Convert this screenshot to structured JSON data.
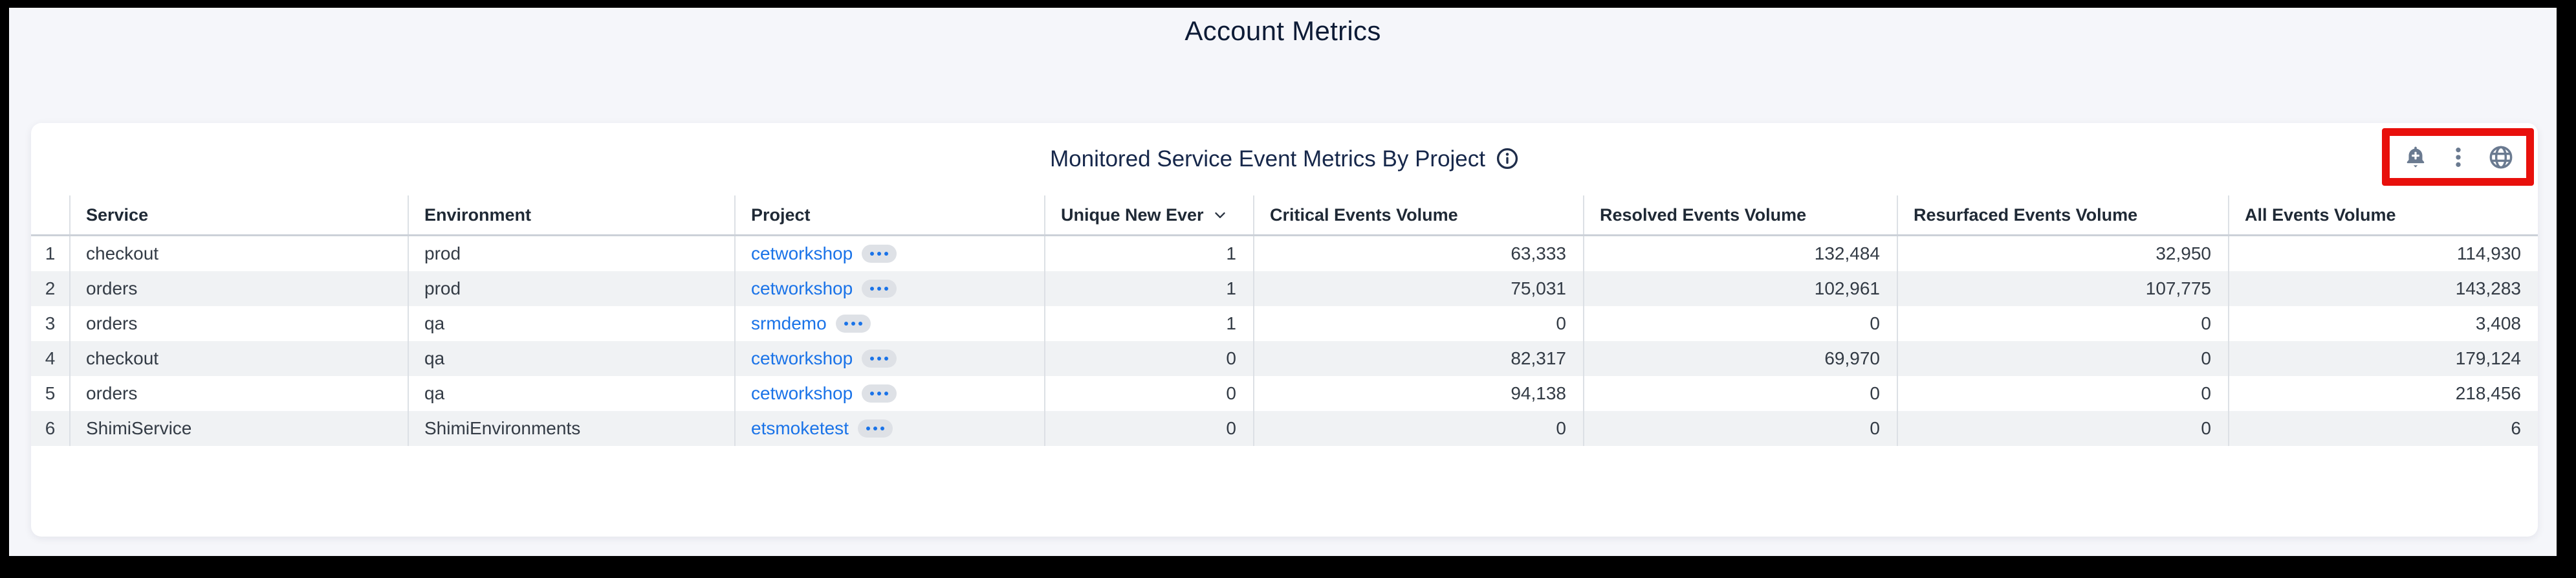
{
  "page": {
    "title": "Account Metrics"
  },
  "panel": {
    "title": "Monitored Service Event Metrics By Project",
    "info_icon": "info-circle-icon",
    "toolbar": {
      "annotation": "red-highlight-box",
      "icons": [
        "add-alert-bell-icon",
        "kebab-menu-icon",
        "globe-icon"
      ]
    }
  },
  "table": {
    "columns": [
      "Service",
      "Environment",
      "Project",
      "Unique New Ever",
      "Critical Events Volume",
      "Resolved Events Volume",
      "Resurfaced Events Volume",
      "All Events Volume"
    ],
    "sorted_column": {
      "label": "Unique New Ever",
      "direction": "desc"
    },
    "rows": [
      {
        "n": "1",
        "service": "checkout",
        "environment": "prod",
        "project": "cetworkshop",
        "unique_new_ever": "1",
        "critical_events_volume": "63,333",
        "resolved_events_volume": "132,484",
        "resurfaced_events_volume": "32,950",
        "all_events_volume": "114,930"
      },
      {
        "n": "2",
        "service": "orders",
        "environment": "prod",
        "project": "cetworkshop",
        "unique_new_ever": "1",
        "critical_events_volume": "75,031",
        "resolved_events_volume": "102,961",
        "resurfaced_events_volume": "107,775",
        "all_events_volume": "143,283"
      },
      {
        "n": "3",
        "service": "orders",
        "environment": "qa",
        "project": "srmdemo",
        "unique_new_ever": "1",
        "critical_events_volume": "0",
        "resolved_events_volume": "0",
        "resurfaced_events_volume": "0",
        "all_events_volume": "3,408"
      },
      {
        "n": "4",
        "service": "checkout",
        "environment": "qa",
        "project": "cetworkshop",
        "unique_new_ever": "0",
        "critical_events_volume": "82,317",
        "resolved_events_volume": "69,970",
        "resurfaced_events_volume": "0",
        "all_events_volume": "179,124"
      },
      {
        "n": "5",
        "service": "orders",
        "environment": "qa",
        "project": "cetworkshop",
        "unique_new_ever": "0",
        "critical_events_volume": "94,138",
        "resolved_events_volume": "0",
        "resurfaced_events_volume": "0",
        "all_events_volume": "218,456"
      },
      {
        "n": "6",
        "service": "ShimiService",
        "environment": "ShimiEnvironments",
        "project": "etsmoketest",
        "unique_new_ever": "0",
        "critical_events_volume": "0",
        "resolved_events_volume": "0",
        "resurfaced_events_volume": "0",
        "all_events_volume": "6"
      }
    ]
  },
  "colors": {
    "page_background": "#f5f6fa",
    "card_background": "#ffffff",
    "title_text": "#0d1b36",
    "panel_title_text": "#16274a",
    "header_text": "#1f2935",
    "cell_text": "#333b45",
    "link_blue": "#1a73e8",
    "row_stripe": "#f0f2f4",
    "gridline": "#dce0e5",
    "toolbar_icon": "#6a7a90",
    "annotation_red": "#e8100c"
  }
}
